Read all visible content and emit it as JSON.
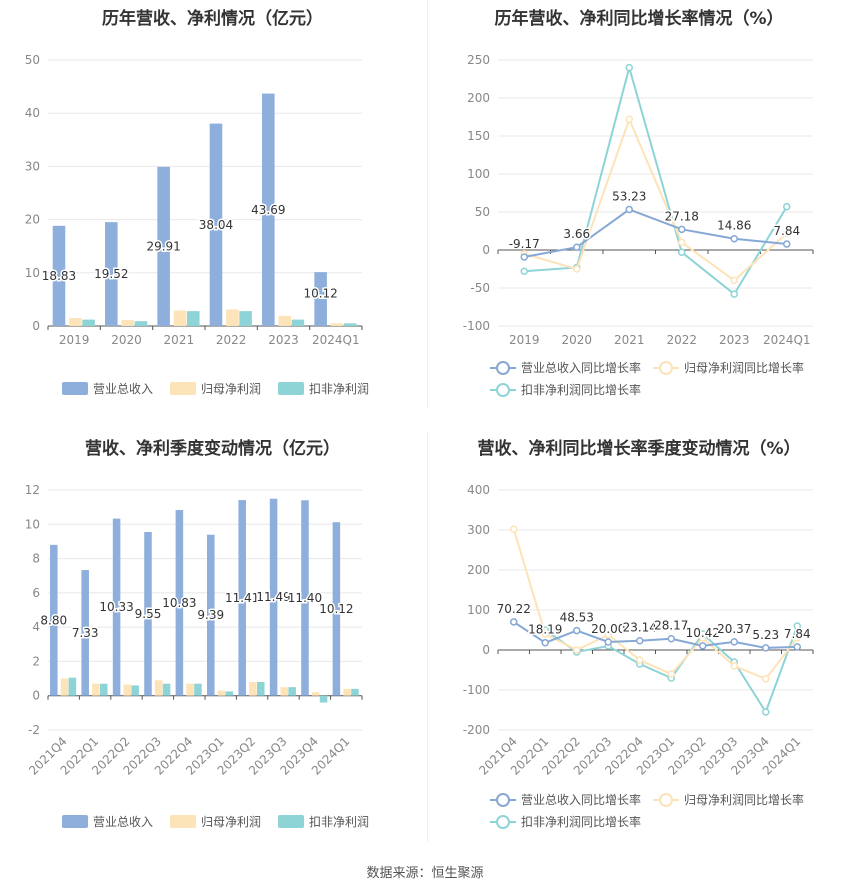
{
  "source": "数据来源：恒生聚源",
  "chart_data": [
    {
      "type": "bar",
      "title": "历年营收、净利情况（亿元）",
      "categories": [
        "2019",
        "2020",
        "2021",
        "2022",
        "2023",
        "2024Q1"
      ],
      "ylim": [
        0,
        50
      ],
      "yticks": [
        0,
        10,
        20,
        30,
        40,
        50
      ],
      "series": [
        {
          "name": "营业总收入",
          "color": "#8eaedb",
          "values": [
            18.83,
            19.52,
            29.91,
            38.04,
            43.69,
            10.12
          ],
          "labels": [
            "18.83",
            "19.52",
            "29.91",
            "38.04",
            "43.69",
            "10.12"
          ]
        },
        {
          "name": "归母净利润",
          "color": "#fde3b8",
          "values": [
            1.5,
            1.1,
            2.9,
            3.1,
            1.9,
            0.5
          ]
        },
        {
          "name": "扣非净利润",
          "color": "#8ed4d6",
          "values": [
            1.2,
            0.9,
            2.8,
            2.8,
            1.2,
            0.5
          ]
        }
      ],
      "legend": "bottom"
    },
    {
      "type": "line",
      "title": "历年营收、净利同比增长率情况（%）",
      "categories": [
        "2019",
        "2020",
        "2021",
        "2022",
        "2023",
        "2024Q1"
      ],
      "ylim": [
        -100,
        250
      ],
      "yticks": [
        -100,
        -50,
        0,
        50,
        100,
        150,
        200,
        250
      ],
      "series": [
        {
          "name": "营业总收入同比增长率",
          "color": "#86a8d6",
          "values": [
            -9.17,
            3.66,
            53.23,
            27.18,
            14.86,
            7.84
          ],
          "labels": [
            "-9.17",
            "3.66",
            "53.23",
            "27.18",
            "14.86",
            "7.84"
          ]
        },
        {
          "name": "归母净利润同比增长率",
          "color": "#fde3b8",
          "values": [
            -5,
            -25,
            172,
            10,
            -40,
            22
          ]
        },
        {
          "name": "扣非净利润同比增长率",
          "color": "#8ed4d6",
          "values": [
            -28,
            -23,
            240,
            -3,
            -58,
            57
          ]
        }
      ],
      "legend": "bottom"
    },
    {
      "type": "bar",
      "title": "营收、净利季度变动情况（亿元）",
      "categories": [
        "2021Q4",
        "2022Q1",
        "2022Q2",
        "2022Q3",
        "2022Q4",
        "2023Q1",
        "2023Q2",
        "2023Q3",
        "2023Q4",
        "2024Q1"
      ],
      "ylim": [
        -2,
        12
      ],
      "yticks": [
        -2,
        0,
        2,
        4,
        6,
        8,
        10,
        12
      ],
      "series": [
        {
          "name": "营业总收入",
          "color": "#8eaedb",
          "values": [
            8.8,
            7.33,
            10.33,
            9.55,
            10.83,
            9.39,
            11.41,
            11.49,
            11.4,
            10.12
          ],
          "labels": [
            "8.80",
            "7.33",
            "10.33",
            "9.55",
            "10.83",
            "9.39",
            "11.41",
            "11.49",
            "11.40",
            "10.12"
          ]
        },
        {
          "name": "归母净利润",
          "color": "#fde3b8",
          "values": [
            1.0,
            0.7,
            0.65,
            0.9,
            0.7,
            0.3,
            0.8,
            0.5,
            0.2,
            0.4
          ]
        },
        {
          "name": "扣非净利润",
          "color": "#8ed4d6",
          "values": [
            1.05,
            0.7,
            0.6,
            0.7,
            0.7,
            0.25,
            0.8,
            0.5,
            -0.4,
            0.4
          ]
        }
      ],
      "legend": "bottom"
    },
    {
      "type": "line",
      "title": "营收、净利同比增长率季度变动情况（%）",
      "categories": [
        "2021Q4",
        "2022Q1",
        "2022Q2",
        "2022Q3",
        "2022Q4",
        "2023Q1",
        "2023Q2",
        "2023Q3",
        "2023Q4",
        "2024Q1"
      ],
      "ylim": [
        -200,
        400
      ],
      "yticks": [
        -200,
        -100,
        0,
        100,
        200,
        300,
        400
      ],
      "series": [
        {
          "name": "营业总收入同比增长率",
          "color": "#86a8d6",
          "values": [
            70.22,
            18.19,
            48.53,
            20.0,
            23.14,
            28.17,
            10.42,
            20.37,
            5.23,
            7.84
          ],
          "labels": [
            "70.22",
            "18.19",
            "48.53",
            "20.00",
            "23.14",
            "28.17",
            "10.42",
            "20.37",
            "5.23",
            "7.84"
          ]
        },
        {
          "name": "归母净利润同比增长率",
          "color": "#fde3b8",
          "values": [
            302,
            40,
            0,
            38,
            -25,
            -60,
            30,
            -40,
            -72,
            30
          ]
        },
        {
          "name": "扣非净利润同比增长率",
          "color": "#8ed4d6",
          "values": [
            null,
            50,
            -5,
            10,
            -35,
            -70,
            40,
            -30,
            -155,
            60
          ]
        }
      ],
      "legend": "bottom"
    }
  ]
}
